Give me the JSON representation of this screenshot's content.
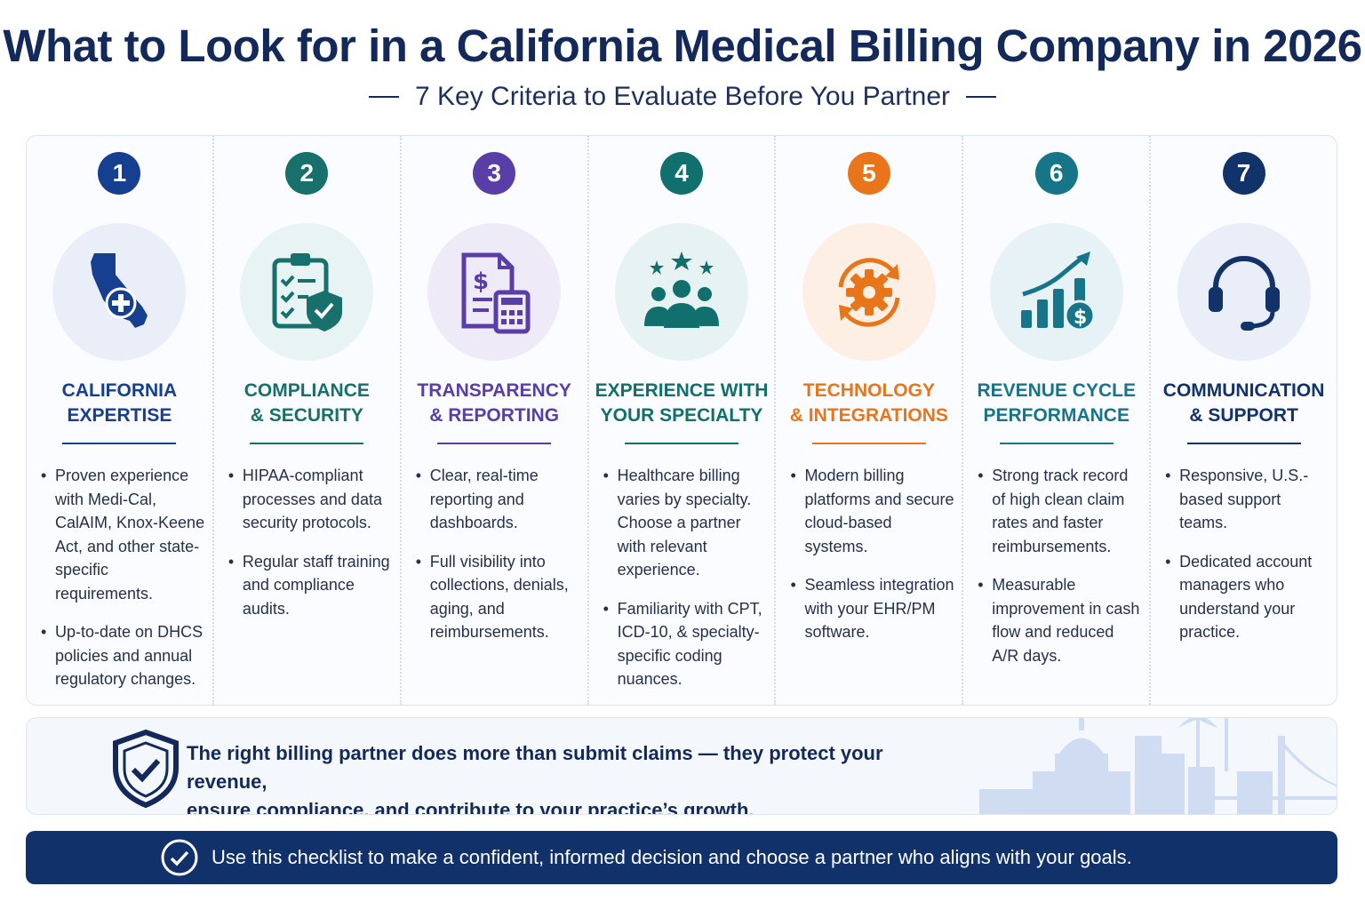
{
  "header": {
    "title": "What to Look for in a California Medical Billing Company in 2026",
    "subtitle": "7 Key Criteria to Evaluate Before You Partner"
  },
  "colors": {
    "navy": "#13295a",
    "blue": "#16408f",
    "teal": "#17706b",
    "purple": "#5a3ea8",
    "green_teal": "#11706e",
    "orange": "#e8751a",
    "cyan_teal": "#17758a",
    "dark_navy": "#12336a"
  },
  "cards": [
    {
      "number": "1",
      "icon": "california-map-icon",
      "title_line1": "CALIFORNIA",
      "title_line2": "EXPERTISE",
      "bullets": [
        "Proven experience with Medi-Cal, CalAIM, Knox-Keene Act, and other state-specific requirements.",
        "Up-to-date on DHCS policies and annual regulatory changes."
      ]
    },
    {
      "number": "2",
      "icon": "clipboard-shield-icon",
      "title_line1": "COMPLIANCE",
      "title_line2": "& SECURITY",
      "bullets": [
        "HIPAA-compliant processes and data security protocols.",
        "Regular staff training and compliance audits."
      ]
    },
    {
      "number": "3",
      "icon": "invoice-calculator-icon",
      "title_line1": "TRANSPARENCY",
      "title_line2": "& REPORTING",
      "bullets": [
        "Clear, real-time reporting and dashboards.",
        "Full visibility into collections, denials, aging, and reimbursements."
      ]
    },
    {
      "number": "4",
      "icon": "team-stars-icon",
      "title_line1": "EXPERIENCE WITH",
      "title_line2": "YOUR SPECIALTY",
      "bullets": [
        "Healthcare billing varies by specialty. Choose a partner with relevant experience.",
        "Familiarity with CPT, ICD-10, & specialty-specific coding nuances."
      ]
    },
    {
      "number": "5",
      "icon": "gear-sync-icon",
      "title_line1": "TECHNOLOGY",
      "title_line2": "& INTEGRATIONS",
      "bullets": [
        "Modern billing platforms and secure cloud-based systems.",
        "Seamless integration with your EHR/PM software."
      ]
    },
    {
      "number": "6",
      "icon": "growth-chart-icon",
      "title_line1": "REVENUE CYCLE",
      "title_line2": "PERFORMANCE",
      "bullets": [
        "Strong track record of high clean claim rates and faster reimbursements.",
        "Measurable improvement in cash flow and reduced A/R days."
      ]
    },
    {
      "number": "7",
      "icon": "headset-icon",
      "title_line1": "COMMUNICATION",
      "title_line2": "& SUPPORT",
      "bullets": [
        "Responsive, U.S.-based support teams.",
        "Dedicated account managers who understand your practice."
      ]
    }
  ],
  "quote": {
    "icon": "shield-check-icon",
    "line1": "The right billing partner does more than submit claims — they protect your revenue,",
    "line2": "ensure compliance, and contribute to your practice’s growth."
  },
  "banner": {
    "icon": "check-circle-icon",
    "text": "Use this checklist to make a confident, informed decision and choose a partner who aligns with your goals."
  }
}
